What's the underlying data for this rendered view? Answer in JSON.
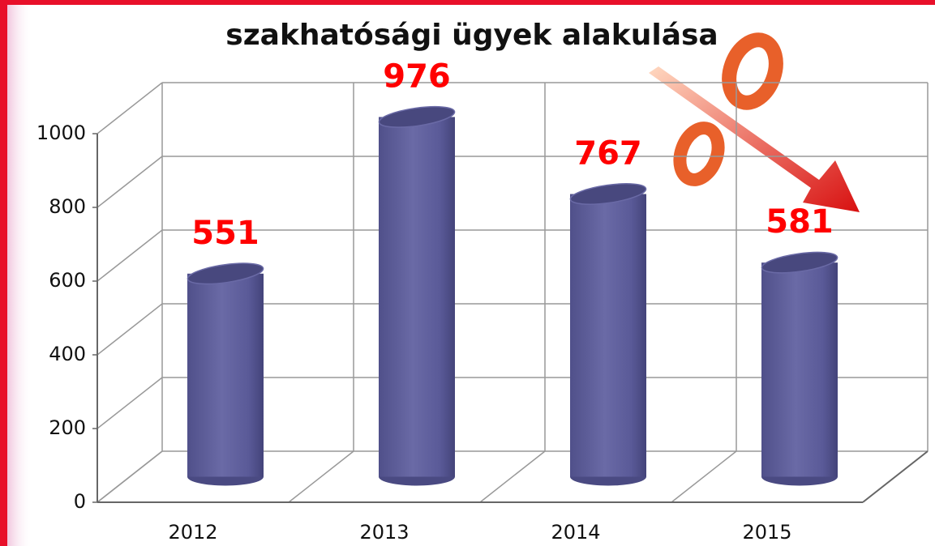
{
  "chart_data": {
    "type": "bar",
    "title": "szakhatósági ügyek alakulása",
    "categories": [
      "2012",
      "2013",
      "2014",
      "2015"
    ],
    "values": [
      551,
      976,
      767,
      581
    ],
    "color": "#5c5c9a",
    "label_color": "#ff0000",
    "ylim": [
      0,
      1000
    ],
    "yticks": [
      0,
      200,
      400,
      600,
      800,
      1000
    ],
    "grid": true
  }
}
